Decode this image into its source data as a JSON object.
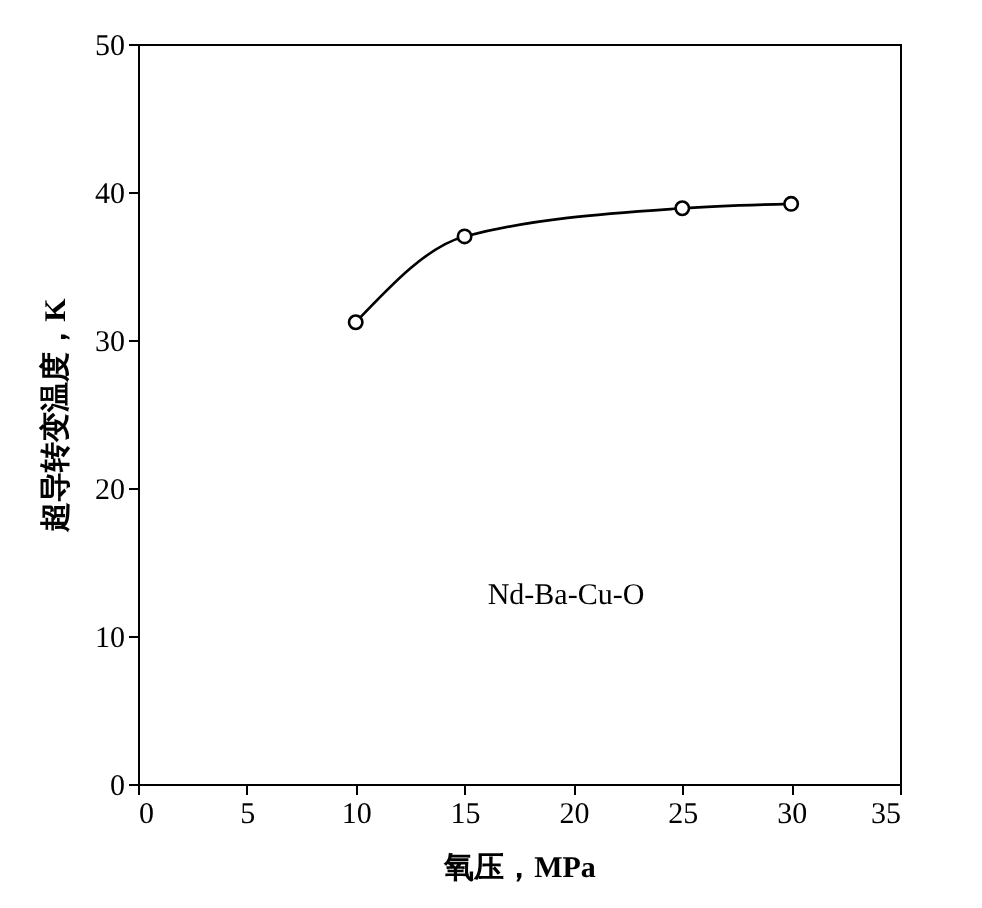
{
  "chart_data": {
    "type": "line",
    "xlabel": "氧压，MPa",
    "ylabel": "超导转变温度，K",
    "x": [
      10,
      15,
      25,
      30
    ],
    "series": [
      {
        "color": "#000000",
        "values": [
          31.2,
          37,
          38.9,
          39.2
        ]
      }
    ],
    "xlim": [
      0,
      35
    ],
    "xticks": [
      0,
      5,
      10,
      15,
      20,
      25,
      30,
      35
    ],
    "ylim": [
      0,
      50
    ],
    "yticks": [
      0,
      10,
      20,
      30,
      40,
      50
    ],
    "marker": "circle",
    "line_style": "solid",
    "grid": false,
    "legend": false,
    "annotations": [
      "Nd-Ba-Cu-O"
    ]
  }
}
